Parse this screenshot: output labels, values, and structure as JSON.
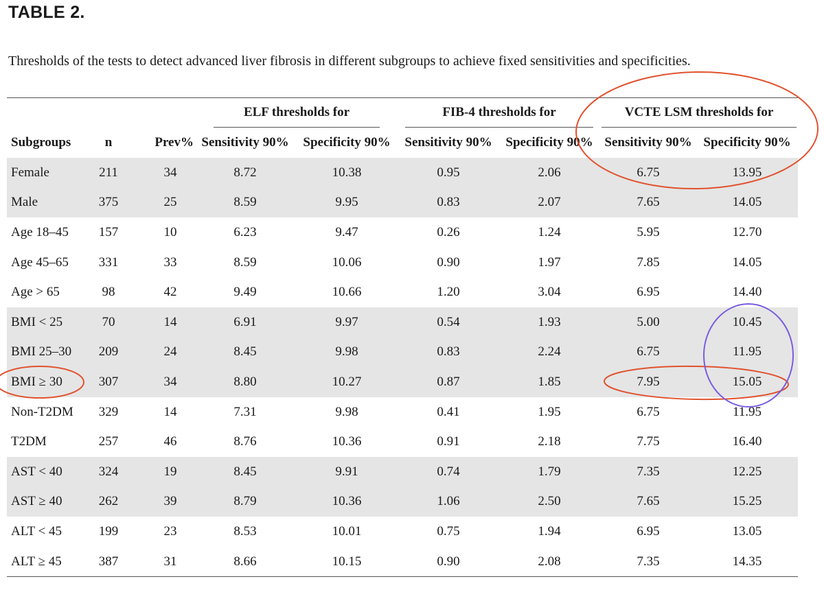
{
  "title": "TABLE 2.",
  "caption": "Thresholds of the tests to detect advanced liver fibrosis in different subgroups to achieve fixed sensitivities and specificities.",
  "group_headers": {
    "elf": "ELF thresholds for",
    "fib4": "FIB-4 thresholds for",
    "vcte": "VCTE LSM thresholds for"
  },
  "columns": [
    "Subgroups",
    "n",
    "Prev%",
    "Sensitivity 90%",
    "Specificity 90%",
    "Sensitivity 90%",
    "Specificity 90%",
    "Sensitivity 90%",
    "Specificity 90%"
  ],
  "rows": [
    {
      "subgroup": "Female",
      "n": "211",
      "prev": "34",
      "elf_sens": "8.72",
      "elf_spec": "10.38",
      "fib4_sens": "0.95",
      "fib4_spec": "2.06",
      "vcte_sens": "6.75",
      "vcte_spec": "13.95"
    },
    {
      "subgroup": "Male",
      "n": "375",
      "prev": "25",
      "elf_sens": "8.59",
      "elf_spec": "9.95",
      "fib4_sens": "0.83",
      "fib4_spec": "2.07",
      "vcte_sens": "7.65",
      "vcte_spec": "14.05"
    },
    {
      "subgroup": "Age 18–45",
      "n": "157",
      "prev": "10",
      "elf_sens": "6.23",
      "elf_spec": "9.47",
      "fib4_sens": "0.26",
      "fib4_spec": "1.24",
      "vcte_sens": "5.95",
      "vcte_spec": "12.70"
    },
    {
      "subgroup": "Age 45–65",
      "n": "331",
      "prev": "33",
      "elf_sens": "8.59",
      "elf_spec": "10.06",
      "fib4_sens": "0.90",
      "fib4_spec": "1.97",
      "vcte_sens": "7.85",
      "vcte_spec": "14.05"
    },
    {
      "subgroup": "Age > 65",
      "n": "98",
      "prev": "42",
      "elf_sens": "9.49",
      "elf_spec": "10.66",
      "fib4_sens": "1.20",
      "fib4_spec": "3.04",
      "vcte_sens": "6.95",
      "vcte_spec": "14.40"
    },
    {
      "subgroup": "BMI < 25",
      "n": "70",
      "prev": "14",
      "elf_sens": "6.91",
      "elf_spec": "9.97",
      "fib4_sens": "0.54",
      "fib4_spec": "1.93",
      "vcte_sens": "5.00",
      "vcte_spec": "10.45"
    },
    {
      "subgroup": "BMI 25–30",
      "n": "209",
      "prev": "24",
      "elf_sens": "8.45",
      "elf_spec": "9.98",
      "fib4_sens": "0.83",
      "fib4_spec": "2.24",
      "vcte_sens": "6.75",
      "vcte_spec": "11.95"
    },
    {
      "subgroup": "BMI ≥ 30",
      "n": "307",
      "prev": "34",
      "elf_sens": "8.80",
      "elf_spec": "10.27",
      "fib4_sens": "0.87",
      "fib4_spec": "1.85",
      "vcte_sens": "7.95",
      "vcte_spec": "15.05"
    },
    {
      "subgroup": "Non-T2DM",
      "n": "329",
      "prev": "14",
      "elf_sens": "7.31",
      "elf_spec": "9.98",
      "fib4_sens": "0.41",
      "fib4_spec": "1.95",
      "vcte_sens": "6.75",
      "vcte_spec": "11.95"
    },
    {
      "subgroup": "T2DM",
      "n": "257",
      "prev": "46",
      "elf_sens": "8.76",
      "elf_spec": "10.36",
      "fib4_sens": "0.91",
      "fib4_spec": "2.18",
      "vcte_sens": "7.75",
      "vcte_spec": "16.40"
    },
    {
      "subgroup": "AST < 40",
      "n": "324",
      "prev": "19",
      "elf_sens": "8.45",
      "elf_spec": "9.91",
      "fib4_sens": "0.74",
      "fib4_spec": "1.79",
      "vcte_sens": "7.35",
      "vcte_spec": "12.25"
    },
    {
      "subgroup": "AST ≥ 40",
      "n": "262",
      "prev": "39",
      "elf_sens": "8.79",
      "elf_spec": "10.36",
      "fib4_sens": "1.06",
      "fib4_spec": "2.50",
      "vcte_sens": "7.65",
      "vcte_spec": "15.25"
    },
    {
      "subgroup": "ALT < 45",
      "n": "199",
      "prev": "23",
      "elf_sens": "8.53",
      "elf_spec": "10.01",
      "fib4_sens": "0.75",
      "fib4_spec": "1.94",
      "vcte_sens": "6.95",
      "vcte_spec": "13.05"
    },
    {
      "subgroup": "ALT ≥ 45",
      "n": "387",
      "prev": "31",
      "elf_sens": "8.66",
      "elf_spec": "10.15",
      "fib4_sens": "0.90",
      "fib4_spec": "2.08",
      "vcte_sens": "7.35",
      "vcte_spec": "14.35"
    }
  ],
  "shaded_row_groups": [
    [
      0,
      1
    ],
    [
      5,
      6,
      7
    ],
    [
      10,
      11
    ]
  ],
  "annotations": {
    "red": "#e0522e",
    "purple": "#7a5ce0"
  }
}
